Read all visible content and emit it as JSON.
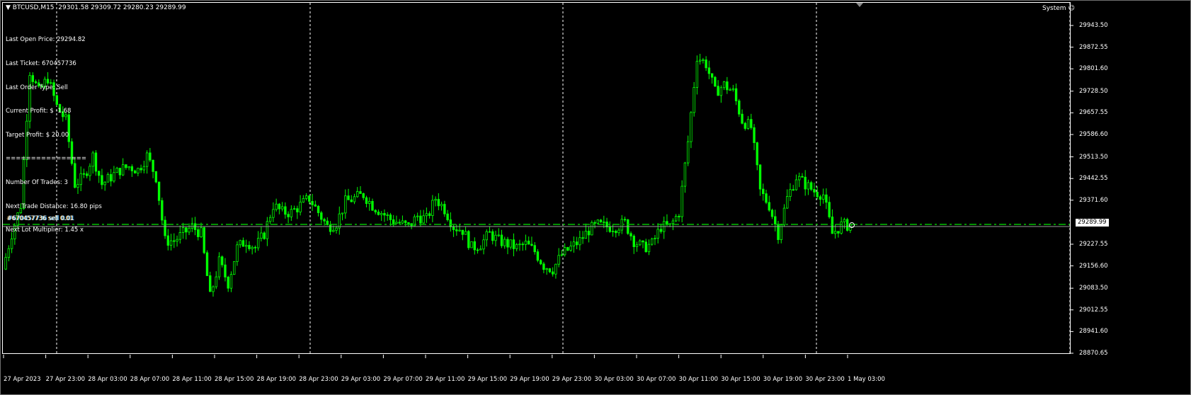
{
  "header": {
    "symbol": "BTCUSD,M15",
    "ohlc": "29301.58 29309.72 29280.23 29289.99",
    "dropdown_icon": "triangle-down"
  },
  "info_panel": [
    "Last Open Price: 29294.82",
    "Last Ticket: 670457736",
    "Last Order Type: Sell",
    "Current Profit: $ -1.68",
    "Target Profit: $ 20.00",
    "================",
    "Number Of Trades: 3",
    "Next Trade Distance: 16.80 pips",
    "Next Lot Multiplier: 1.45 x"
  ],
  "system_label": "System",
  "order_line": {
    "label": "#670457736 sell 0.01",
    "price": 29289.99,
    "color": "#00c000"
  },
  "bid_label": "29289.99",
  "colors": {
    "candle": "#00ff00",
    "background": "#000000",
    "grid": "#ffffff"
  },
  "chart_data": {
    "type": "candlestick",
    "ylim": [
      28870.65,
      29943.5
    ],
    "y_ticks": [
      "29943.50",
      "29872.55",
      "29801.60",
      "29728.50",
      "29657.55",
      "29586.60",
      "29513.50",
      "29442.55",
      "29371.60",
      "29227.55",
      "29156.60",
      "29083.50",
      "29012.55",
      "28941.60",
      "28870.65"
    ],
    "x_ticks": [
      "27 Apr 2023",
      "27 Apr 23:00",
      "28 Apr 03:00",
      "28 Apr 07:00",
      "28 Apr 11:00",
      "28 Apr 15:00",
      "28 Apr 19:00",
      "28 Apr 23:00",
      "29 Apr 03:00",
      "29 Apr 07:00",
      "29 Apr 11:00",
      "29 Apr 15:00",
      "29 Apr 19:00",
      "29 Apr 23:00",
      "30 Apr 03:00",
      "30 Apr 07:00",
      "30 Apr 11:00",
      "30 Apr 15:00",
      "30 Apr 19:00",
      "30 Apr 23:00",
      "1 May 03:00"
    ],
    "approx_close_path": [
      29146,
      29262,
      29355,
      29795,
      29726,
      29772,
      29679,
      29633,
      29424,
      29448,
      29517,
      29424,
      29448,
      29471,
      29482,
      29471,
      29517,
      29448,
      29239,
      29239,
      29262,
      29285,
      29262,
      29054,
      29170,
      29100,
      29216,
      29239,
      29216,
      29262,
      29355,
      29332,
      29332,
      29355,
      29378,
      29332,
      29285,
      29297,
      29366,
      29378,
      29390,
      29355,
      29332,
      29309,
      29297,
      29285,
      29320,
      29309,
      29378,
      29343,
      29285,
      29274,
      29216,
      29228,
      29262,
      29239,
      29228,
      29216,
      29228,
      29204,
      29158,
      29146,
      29193,
      29216,
      29239,
      29274,
      29290,
      29285,
      29285,
      29297,
      29239,
      29216,
      29228,
      29285,
      29285,
      29332,
      29563,
      29842,
      29818,
      29726,
      29749,
      29726,
      29633,
      29610,
      29401,
      29355,
      29262,
      29378,
      29448,
      29424,
      29401,
      29390,
      29262,
      29290,
      29289.99
    ]
  }
}
